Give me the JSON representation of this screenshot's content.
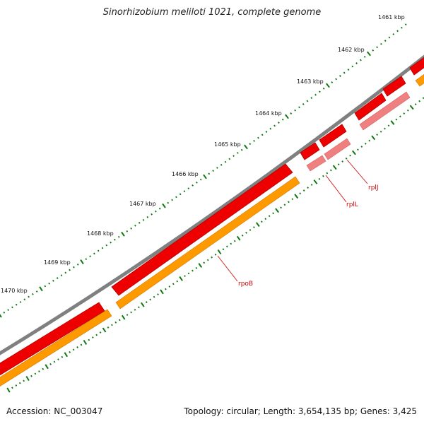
{
  "title": "Sinorhizobium meliloti 1021, complete genome",
  "footer": {
    "accession": "Accession: NC_003047",
    "summary": "Topology: circular; Length: 3,654,135 bp; Genes: 3,425"
  },
  "ruler_labels": [
    "1461 kbp",
    "1462 kbp",
    "1463 kbp",
    "1464 kbp",
    "1465 kbp",
    "1466 kbp",
    "1467 kbp",
    "1468 kbp",
    "1469 kbp",
    "1470 kbp"
  ],
  "genes": [
    {
      "name": "rpoB"
    },
    {
      "name": "rplL"
    },
    {
      "name": "rplJ"
    }
  ],
  "colors": {
    "backbone": "#808080",
    "gene_forward": "#ee0000",
    "gene_reverse": "#f08080",
    "cds": "#ff9900",
    "ticks": "#117711",
    "label": "#cc0000"
  }
}
